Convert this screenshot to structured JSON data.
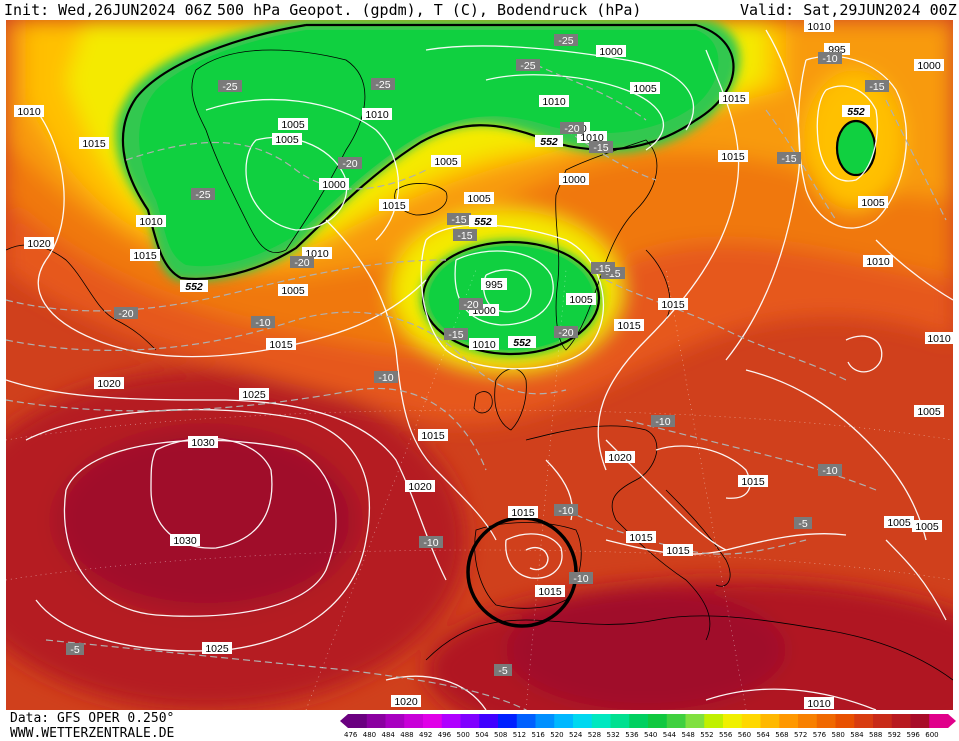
{
  "header": {
    "init": "Init: Wed,26JUN2024 06Z",
    "title": "500 hPa Geopot. (gpdm), T (C), Bodendruck (hPa)",
    "valid": "Valid: Sat,29JUN2024 00Z"
  },
  "footer": {
    "data_source": "Data: GFS OPER 0.250°",
    "website": "WWW.WETTERZENTRALE.DE"
  },
  "legend": {
    "levels": [
      "476",
      "480",
      "484",
      "488",
      "492",
      "496",
      "500",
      "504",
      "508",
      "512",
      "516",
      "520",
      "524",
      "528",
      "532",
      "536",
      "540",
      "544",
      "548",
      "552",
      "556",
      "560",
      "564",
      "568",
      "572",
      "576",
      "580",
      "584",
      "588",
      "592",
      "596",
      "600"
    ],
    "colors": [
      "#6a0080",
      "#8a00a0",
      "#a800c0",
      "#c800d8",
      "#e000e8",
      "#b000ff",
      "#8000ff",
      "#4000ff",
      "#0020ff",
      "#0060ff",
      "#0090ff",
      "#00b8ff",
      "#00d8f0",
      "#00e8c0",
      "#00e090",
      "#00d060",
      "#10c840",
      "#40d040",
      "#80e040",
      "#c0f000",
      "#f0f000",
      "#ffd800",
      "#ffb800",
      "#ff9800",
      "#f88000",
      "#f06800",
      "#e85000",
      "#d83c10",
      "#c82a18",
      "#b81a20",
      "#a80c28",
      "#e0008a"
    ]
  },
  "map": {
    "isobar_labels": [
      {
        "text": "1010",
        "id": "a1"
      },
      {
        "text": "1015",
        "id": "a2"
      },
      {
        "text": "1005",
        "id": "a3"
      },
      {
        "text": "1005",
        "id": "a4"
      },
      {
        "text": "1010",
        "id": "a5"
      },
      {
        "text": "1000",
        "id": "a6"
      },
      {
        "text": "1005",
        "id": "a7"
      },
      {
        "text": "1000",
        "id": "a8"
      },
      {
        "text": "1010",
        "id": "a9"
      },
      {
        "text": "1005",
        "id": "a10"
      },
      {
        "text": "1010",
        "id": "a11"
      },
      {
        "text": "1015",
        "id": "a12"
      },
      {
        "text": "1020",
        "id": "a13"
      },
      {
        "text": "1015",
        "id": "a14"
      },
      {
        "text": "1010",
        "id": "a15"
      },
      {
        "text": "1005",
        "id": "a16"
      },
      {
        "text": "1015",
        "id": "a17"
      },
      {
        "text": "1020",
        "id": "a18"
      },
      {
        "text": "1025",
        "id": "a19"
      },
      {
        "text": "1030",
        "id": "a20"
      },
      {
        "text": "1030",
        "id": "a21"
      },
      {
        "text": "1025",
        "id": "a22"
      },
      {
        "text": "1015",
        "id": "a23"
      },
      {
        "text": "1020",
        "id": "a24"
      },
      {
        "text": "995",
        "id": "a25"
      },
      {
        "text": "1000",
        "id": "a26"
      },
      {
        "text": "1005",
        "id": "a27"
      },
      {
        "text": "1010",
        "id": "a28"
      },
      {
        "text": "1015",
        "id": "a29"
      },
      {
        "text": "1000",
        "id": "a30"
      },
      {
        "text": "1005",
        "id": "a31"
      },
      {
        "text": "1010",
        "id": "a32"
      },
      {
        "text": "1010",
        "id": "a33"
      },
      {
        "text": "1015",
        "id": "a34"
      },
      {
        "text": "1000",
        "id": "a35"
      },
      {
        "text": "995",
        "id": "a36"
      },
      {
        "text": "1005",
        "id": "a37"
      },
      {
        "text": "1005",
        "id": "a38"
      },
      {
        "text": "1015",
        "id": "a39"
      },
      {
        "text": "1010",
        "id": "a40"
      },
      {
        "text": "1020",
        "id": "a41"
      },
      {
        "text": "1015",
        "id": "a42"
      },
      {
        "text": "1015",
        "id": "a43"
      },
      {
        "text": "1015",
        "id": "a44"
      },
      {
        "text": "1015",
        "id": "a45"
      },
      {
        "text": "1015",
        "id": "a46"
      },
      {
        "text": "1005",
        "id": "a47"
      },
      {
        "text": "1010",
        "id": "a48"
      },
      {
        "text": "1020",
        "id": "a49"
      },
      {
        "text": "1010",
        "id": "a50"
      },
      {
        "text": "1015",
        "id": "a51"
      },
      {
        "text": "1010",
        "id": "a52"
      },
      {
        "text": "1005",
        "id": "a53"
      }
    ],
    "temperature_labels": [
      {
        "text": "-25",
        "id": "t1"
      },
      {
        "text": "-25",
        "id": "t2"
      },
      {
        "text": "-25",
        "id": "t3"
      },
      {
        "text": "-20",
        "id": "t4"
      },
      {
        "text": "-25",
        "id": "t5"
      },
      {
        "text": "-25",
        "id": "t6"
      },
      {
        "text": "-20",
        "id": "t7"
      },
      {
        "text": "-15",
        "id": "t8"
      },
      {
        "text": "-15",
        "id": "t9"
      },
      {
        "text": "-20",
        "id": "t10"
      },
      {
        "text": "-20",
        "id": "t11"
      },
      {
        "text": "-15",
        "id": "t12"
      },
      {
        "text": "-20",
        "id": "t13"
      },
      {
        "text": "-15",
        "id": "t14"
      },
      {
        "text": "-20",
        "id": "t15"
      },
      {
        "text": "-10",
        "id": "t16"
      },
      {
        "text": "-10",
        "id": "t17"
      },
      {
        "text": "-15",
        "id": "t18"
      },
      {
        "text": "-10",
        "id": "t19"
      },
      {
        "text": "-10",
        "id": "t20"
      },
      {
        "text": "-10",
        "id": "t21"
      },
      {
        "text": "-10",
        "id": "t22"
      },
      {
        "text": "-10",
        "id": "t23"
      },
      {
        "text": "-5",
        "id": "t24"
      },
      {
        "text": "-5",
        "id": "t25"
      },
      {
        "text": "-5",
        "id": "t26"
      },
      {
        "text": "-15",
        "id": "t27"
      },
      {
        "text": "-15",
        "id": "t28"
      },
      {
        "text": "-10",
        "id": "t29"
      },
      {
        "text": "-15",
        "id": "t30"
      }
    ],
    "geopotential_labels": [
      {
        "text": "552",
        "id": "g1"
      },
      {
        "text": "552",
        "id": "g2"
      },
      {
        "text": "552",
        "id": "g3"
      },
      {
        "text": "552",
        "id": "g4"
      },
      {
        "text": "552",
        "id": "g5"
      }
    ]
  }
}
